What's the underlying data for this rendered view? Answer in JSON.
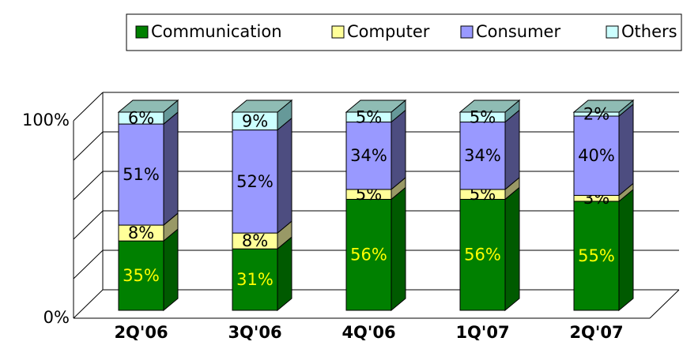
{
  "chart_data": {
    "type": "stacked_bar_3d",
    "categories": [
      "2Q'06",
      "3Q'06",
      "4Q'06",
      "1Q'07",
      "2Q'07"
    ],
    "series": [
      {
        "name": "Communication",
        "color": "#008000",
        "side_color": "#005a00",
        "label_color": "#ffff00",
        "values": [
          35,
          31,
          56,
          56,
          55
        ],
        "value_labels": [
          "35%",
          "31%",
          "56%",
          "56%",
          "55%"
        ]
      },
      {
        "name": "Computer",
        "color": "#ffff99",
        "side_color": "#999966",
        "label_color": "#000000",
        "values": [
          8,
          8,
          5,
          5,
          3
        ],
        "value_labels": [
          "8%",
          "8%",
          "5%",
          "5%",
          "3%"
        ]
      },
      {
        "name": "Consumer",
        "color": "#9999ff",
        "side_color": "#4d4d80",
        "label_color": "#000000",
        "values": [
          51,
          52,
          34,
          34,
          40
        ],
        "value_labels": [
          "51%",
          "52%",
          "34%",
          "34%",
          "40%"
        ]
      },
      {
        "name": "Others",
        "color": "#ccffff",
        "side_color": "#669999",
        "top_color": "#8fbcb4",
        "label_color": "#000000",
        "values": [
          6,
          9,
          5,
          5,
          2
        ],
        "value_labels": [
          "6%",
          "9%",
          "5%",
          "5%",
          "2%"
        ]
      }
    ],
    "ylim": [
      0,
      100
    ],
    "yticks": [
      {
        "value": 0,
        "label": "0%"
      },
      {
        "value": 100,
        "label": "100%"
      }
    ],
    "grid_lines": [
      0,
      20,
      40,
      60,
      80,
      100
    ],
    "grid": true,
    "legend": "top"
  }
}
